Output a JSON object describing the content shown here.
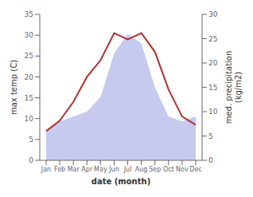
{
  "chart_data": {
    "type": "line",
    "categories": [
      "Jan",
      "Feb",
      "Mar",
      "Apr",
      "May",
      "Jun",
      "Jul",
      "Aug",
      "Sep",
      "Oct",
      "Nov",
      "Dec"
    ],
    "xlabel": "date (month)",
    "ylabel": "max temp (C)",
    "y2label": "med. precipitation\n(kg/m2)",
    "ylim": [
      0,
      35
    ],
    "yticks": [
      0,
      5,
      10,
      15,
      20,
      25,
      30,
      35
    ],
    "y2lim": [
      0,
      30
    ],
    "y2ticks": [
      0,
      5,
      10,
      15,
      20,
      25,
      30
    ],
    "grid": false,
    "series": [
      {
        "type": "area",
        "axis": "y2",
        "color": "#c5caee",
        "values": [
          6,
          8,
          9,
          10,
          13,
          22,
          26,
          24,
          15,
          9,
          8,
          9
        ]
      },
      {
        "type": "line",
        "color": "#b03030",
        "values": [
          7,
          9.5,
          14,
          20,
          24,
          30.5,
          29,
          30.5,
          26,
          17,
          10.5,
          8.5
        ]
      }
    ]
  }
}
